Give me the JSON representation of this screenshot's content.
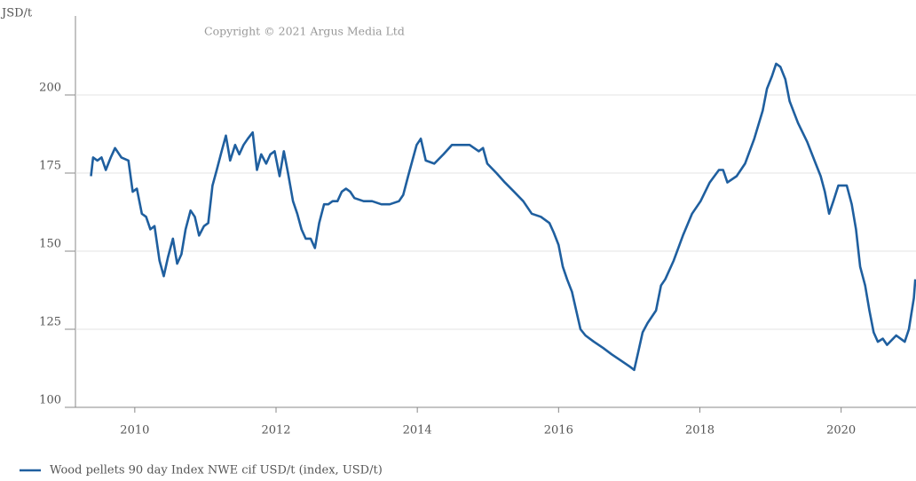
{
  "chart_data": {
    "type": "line",
    "y_label": "JSD/t",
    "annotation": "Copyright © 2021 Argus Media Ltd",
    "x": [
      2009.38,
      2009.41,
      2009.47,
      2009.53,
      2009.59,
      2009.66,
      2009.72,
      2009.81,
      2009.91,
      2009.97,
      2010.03,
      2010.1,
      2010.16,
      2010.22,
      2010.28,
      2010.35,
      2010.41,
      2010.47,
      2010.54,
      2010.6,
      2010.66,
      2010.72,
      2010.79,
      2010.85,
      2010.91,
      2010.98,
      2011.04,
      2011.1,
      2011.16,
      2011.23,
      2011.29,
      2011.35,
      2011.42,
      2011.48,
      2011.54,
      2011.6,
      2011.67,
      2011.73,
      2011.79,
      2011.86,
      2011.92,
      2011.98,
      2012.05,
      2012.11,
      2012.17,
      2012.24,
      2012.3,
      2012.36,
      2012.42,
      2012.49,
      2012.55,
      2012.61,
      2012.68,
      2012.74,
      2012.8,
      2012.87,
      2012.93,
      2012.99,
      2013.05,
      2013.11,
      2013.24,
      2013.36,
      2013.49,
      2013.61,
      2013.74,
      2013.8,
      2013.87,
      2013.93,
      2013.99,
      2014.05,
      2014.12,
      2014.24,
      2014.37,
      2014.49,
      2014.62,
      2014.74,
      2014.87,
      2014.93,
      2014.99,
      2015.12,
      2015.24,
      2015.37,
      2015.5,
      2015.62,
      2015.75,
      2015.87,
      2015.93,
      2016.0,
      2016.06,
      2016.12,
      2016.19,
      2016.25,
      2016.31,
      2016.38,
      2016.5,
      2016.63,
      2016.75,
      2016.88,
      2017.01,
      2017.07,
      2017.13,
      2017.19,
      2017.26,
      2017.38,
      2017.45,
      2017.51,
      2017.63,
      2017.76,
      2017.89,
      2018.01,
      2018.14,
      2018.27,
      2018.33,
      2018.39,
      2018.52,
      2018.64,
      2018.77,
      2018.89,
      2018.95,
      2019.02,
      2019.08,
      2019.14,
      2019.21,
      2019.27,
      2019.39,
      2019.52,
      2019.64,
      2019.71,
      2019.77,
      2019.83,
      2019.89,
      2019.96,
      2020.08,
      2020.15,
      2020.21,
      2020.27,
      2020.34,
      2020.4,
      2020.46,
      2020.52,
      2020.59,
      2020.65,
      2020.78,
      2020.9,
      2020.96,
      2021.03,
      2021.05
    ],
    "series": [
      {
        "name": "Wood pellets 90 day Index NWE cif USD/t (index, USD/t)",
        "color": "#1f5f9f",
        "values": [
          174,
          180,
          179,
          180,
          176,
          180,
          183,
          180,
          179,
          169,
          170,
          162,
          161,
          157,
          158,
          147,
          142,
          148,
          154,
          146,
          149,
          157,
          163,
          161,
          155,
          158,
          159,
          171,
          176,
          182,
          187,
          179,
          184,
          181,
          184,
          186,
          188,
          176,
          181,
          178,
          181,
          182,
          174,
          182,
          175,
          166,
          162,
          157,
          154,
          154,
          151,
          159,
          165,
          165,
          166,
          166,
          169,
          170,
          169,
          167,
          166,
          166,
          165,
          165,
          166,
          168,
          174,
          179,
          184,
          186,
          179,
          178,
          181,
          184,
          184,
          184,
          182,
          183,
          178,
          175,
          172,
          169,
          166,
          162,
          161,
          159,
          156,
          152,
          145,
          141,
          137,
          131,
          125,
          123,
          121,
          119,
          117,
          115,
          113,
          112,
          118,
          124,
          127,
          131,
          139,
          141,
          147,
          155,
          162,
          166,
          172,
          176,
          176,
          172,
          174,
          178,
          186,
          195,
          202,
          206,
          210,
          209,
          205,
          198,
          191,
          185,
          178,
          174,
          169,
          162,
          166,
          171,
          171,
          165,
          157,
          145,
          139,
          131,
          124,
          121,
          122,
          120,
          123,
          121,
          125,
          135,
          141
        ]
      }
    ],
    "xlim": [
      2009.16,
      2021.06
    ],
    "ylim": [
      100,
      225
    ],
    "xticks": [
      2010,
      2012,
      2014,
      2016,
      2018,
      2020
    ],
    "yticks": [
      100,
      125,
      150,
      175,
      200
    ],
    "grid": true
  }
}
